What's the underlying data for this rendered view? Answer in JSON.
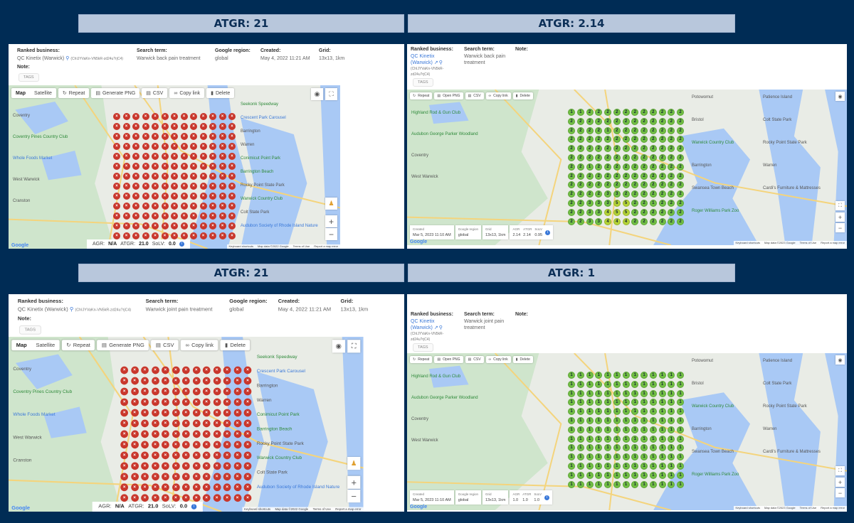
{
  "titles": [
    {
      "label": "ATGR: 21"
    },
    {
      "label": "ATGR: 2.14"
    },
    {
      "label": "ATGR: 21"
    },
    {
      "label": "ATGR: 1"
    }
  ],
  "labels": {
    "ranked_business": "Ranked business:",
    "search_term": "Search term:",
    "google_region": "Google region:",
    "created": "Created:",
    "grid": "Grid:",
    "note": "Note:",
    "tags": "TAGS",
    "agr": "AGR:",
    "atgr": "ATGR:",
    "solv": "SoLV:",
    "agr_short": "AGR",
    "atgr_short": "ATGR",
    "solv_short": "SoLV",
    "created_short": "Created",
    "region_short": "Google region",
    "grid_short": "Grid"
  },
  "toolbar": {
    "map": "Map",
    "satellite": "Satellite",
    "repeat": "Repeat",
    "generate_png": "Generate PNG",
    "open_png": "Open PNG",
    "csv": "CSV",
    "copy_link": "Copy link",
    "delete": "Delete"
  },
  "map_footer": {
    "shortcuts": "Keyboard shortcuts",
    "data_2022": "Map data ©2022 Google",
    "data_2023": "Map data ©2023 Google",
    "terms": "Terms of Use",
    "report": "Report a map error",
    "google": "Google"
  },
  "map_labels_left": [
    "Seekonk Speedway",
    "Crescent Park Carousel",
    "Barrington",
    "Warren",
    "Conimicut Point Park",
    "Barrington Beach",
    "Rocky Point State Park",
    "Warwick Country Club",
    "Colt State Park",
    "Coventry",
    "Coventry Pines Country Club",
    "Whole Foods Market",
    "West Warwick",
    "Cranston",
    "Audubon Society of Rhode Island Nature"
  ],
  "map_labels_right": [
    "Highland Rod & Gun Club",
    "Audubon George Parker Woodland",
    "Potowomut",
    "Patience Island",
    "Bristol",
    "Colt State Park",
    "Warwick Country Club",
    "Rocky Point State Park",
    "Barrington",
    "Warren",
    "Swansea Town Beach",
    "Cardi's Furniture & Mattresses",
    "Roger Williams Park Zoo",
    "Coventry",
    "West Warwick"
  ],
  "panels": [
    {
      "type": "left",
      "business": "QC Kinetix (Warwick)",
      "place_id": "(ChIJYVaKn-VN5kR-zd24u?rjC4)",
      "search_term": "Warwick back pain treatment",
      "region": "global",
      "created": "May 4, 2022 11:21 AM",
      "grid": "13x13, 1km",
      "agr": "N/A",
      "atgr": "21.0",
      "solv": "0.0",
      "rank_grid": "none"
    },
    {
      "type": "right",
      "business_line1": "QC Kinetix",
      "business_line2": "(Warwick)",
      "place_id_line1": "(ChIJYVaKn-VN5kR-",
      "place_id_line2": "zd24u?rjC4)",
      "search_term": "Warwick back pain treatment",
      "region": "global",
      "created": "Mar 5, 2023 11:10 AM",
      "grid": "13x13, 1km",
      "agr": "2.14",
      "atgr": "2.14",
      "solv": "0.95",
      "ranks": [
        [
          1,
          1,
          2,
          2,
          2,
          2,
          2,
          2,
          2,
          2,
          2,
          2,
          2
        ],
        [
          2,
          2,
          2,
          2,
          2,
          2,
          2,
          2,
          2,
          2,
          2,
          2,
          2
        ],
        [
          2,
          2,
          2,
          2,
          1,
          2,
          2,
          2,
          2,
          2,
          2,
          2,
          2
        ],
        [
          2,
          2,
          2,
          2,
          2,
          2,
          2,
          2,
          2,
          2,
          2,
          2,
          2
        ],
        [
          2,
          2,
          2,
          2,
          2,
          2,
          2,
          2,
          2,
          2,
          2,
          2,
          2
        ],
        [
          2,
          2,
          2,
          2,
          2,
          2,
          2,
          2,
          2,
          2,
          2,
          2,
          2
        ],
        [
          2,
          2,
          1,
          2,
          2,
          2,
          2,
          2,
          2,
          2,
          2,
          2,
          2
        ],
        [
          2,
          2,
          2,
          2,
          2,
          2,
          2,
          2,
          2,
          2,
          2,
          2,
          2
        ],
        [
          2,
          2,
          2,
          2,
          2,
          2,
          2,
          2,
          2,
          2,
          2,
          2,
          2
        ],
        [
          2,
          2,
          2,
          2,
          3,
          3,
          2,
          2,
          2,
          2,
          2,
          2,
          2
        ],
        [
          2,
          2,
          3,
          3,
          3,
          5,
          5,
          2,
          2,
          1,
          2,
          2,
          2
        ],
        [
          2,
          2,
          3,
          3,
          4,
          5,
          5,
          2,
          2,
          2,
          2,
          2,
          2
        ],
        [
          2,
          2,
          3,
          3,
          4,
          4,
          4,
          2,
          2,
          2,
          2,
          2,
          2
        ]
      ]
    },
    {
      "type": "left",
      "business": "QC Kinetix (Warwick)",
      "place_id": "(ChIJYVaKn-VN5kR-zd24u?rjC4)",
      "search_term": "Warwick joint pain treatment",
      "region": "global",
      "created": "May 4, 2022 11:21 AM",
      "grid": "13x13, 1km",
      "agr": "N/A",
      "atgr": "21.0",
      "solv": "0.0",
      "rank_grid": "none"
    },
    {
      "type": "right",
      "business_line1": "QC Kinetix",
      "business_line2": "(Warwick)",
      "place_id_line1": "(ChIJYVaKn-VN5kR-",
      "place_id_line2": "zd24u?rjC4)",
      "search_term": "Warwick joint pain treatment",
      "region": "global",
      "created": "Mar 5, 2023 11:10 AM",
      "grid": "13x13, 1km",
      "agr": "1.0",
      "atgr": "1.0",
      "solv": "1.0",
      "ranks": [
        [
          1,
          1,
          1,
          1,
          1,
          1,
          1,
          1,
          1,
          1,
          1,
          1,
          1
        ],
        [
          1,
          1,
          1,
          1,
          1,
          1,
          1,
          1,
          1,
          1,
          1,
          1,
          1
        ],
        [
          1,
          1,
          1,
          1,
          1,
          1,
          1,
          1,
          1,
          1,
          1,
          1,
          1
        ],
        [
          1,
          1,
          1,
          1,
          1,
          1,
          1,
          1,
          1,
          1,
          1,
          1,
          1
        ],
        [
          1,
          1,
          1,
          1,
          1,
          1,
          1,
          1,
          1,
          1,
          1,
          1,
          1
        ],
        [
          1,
          1,
          1,
          1,
          1,
          1,
          1,
          1,
          1,
          1,
          1,
          1,
          1
        ],
        [
          1,
          1,
          1,
          1,
          1,
          1,
          1,
          1,
          1,
          1,
          1,
          1,
          1
        ],
        [
          1,
          1,
          1,
          1,
          1,
          1,
          1,
          1,
          1,
          1,
          1,
          1,
          1
        ],
        [
          1,
          1,
          1,
          1,
          1,
          1,
          1,
          1,
          1,
          1,
          1,
          1,
          1
        ],
        [
          1,
          1,
          1,
          1,
          1,
          1,
          1,
          1,
          1,
          1,
          1,
          1,
          1
        ],
        [
          1,
          1,
          1,
          1,
          1,
          1,
          1,
          1,
          1,
          1,
          1,
          1,
          1
        ],
        [
          1,
          1,
          1,
          1,
          1,
          1,
          1,
          1,
          1,
          1,
          1,
          1,
          1
        ],
        [
          1,
          1,
          1,
          1,
          1,
          1,
          1,
          1,
          1,
          1,
          1,
          1,
          1
        ]
      ]
    }
  ],
  "colors": {
    "background": "#002c55",
    "title_bar": "#b8c7dc",
    "not_ranked": "#c9372c",
    "ranked": "#72bf44",
    "low_rank": "#b4d336",
    "link": "#3a78d8"
  }
}
